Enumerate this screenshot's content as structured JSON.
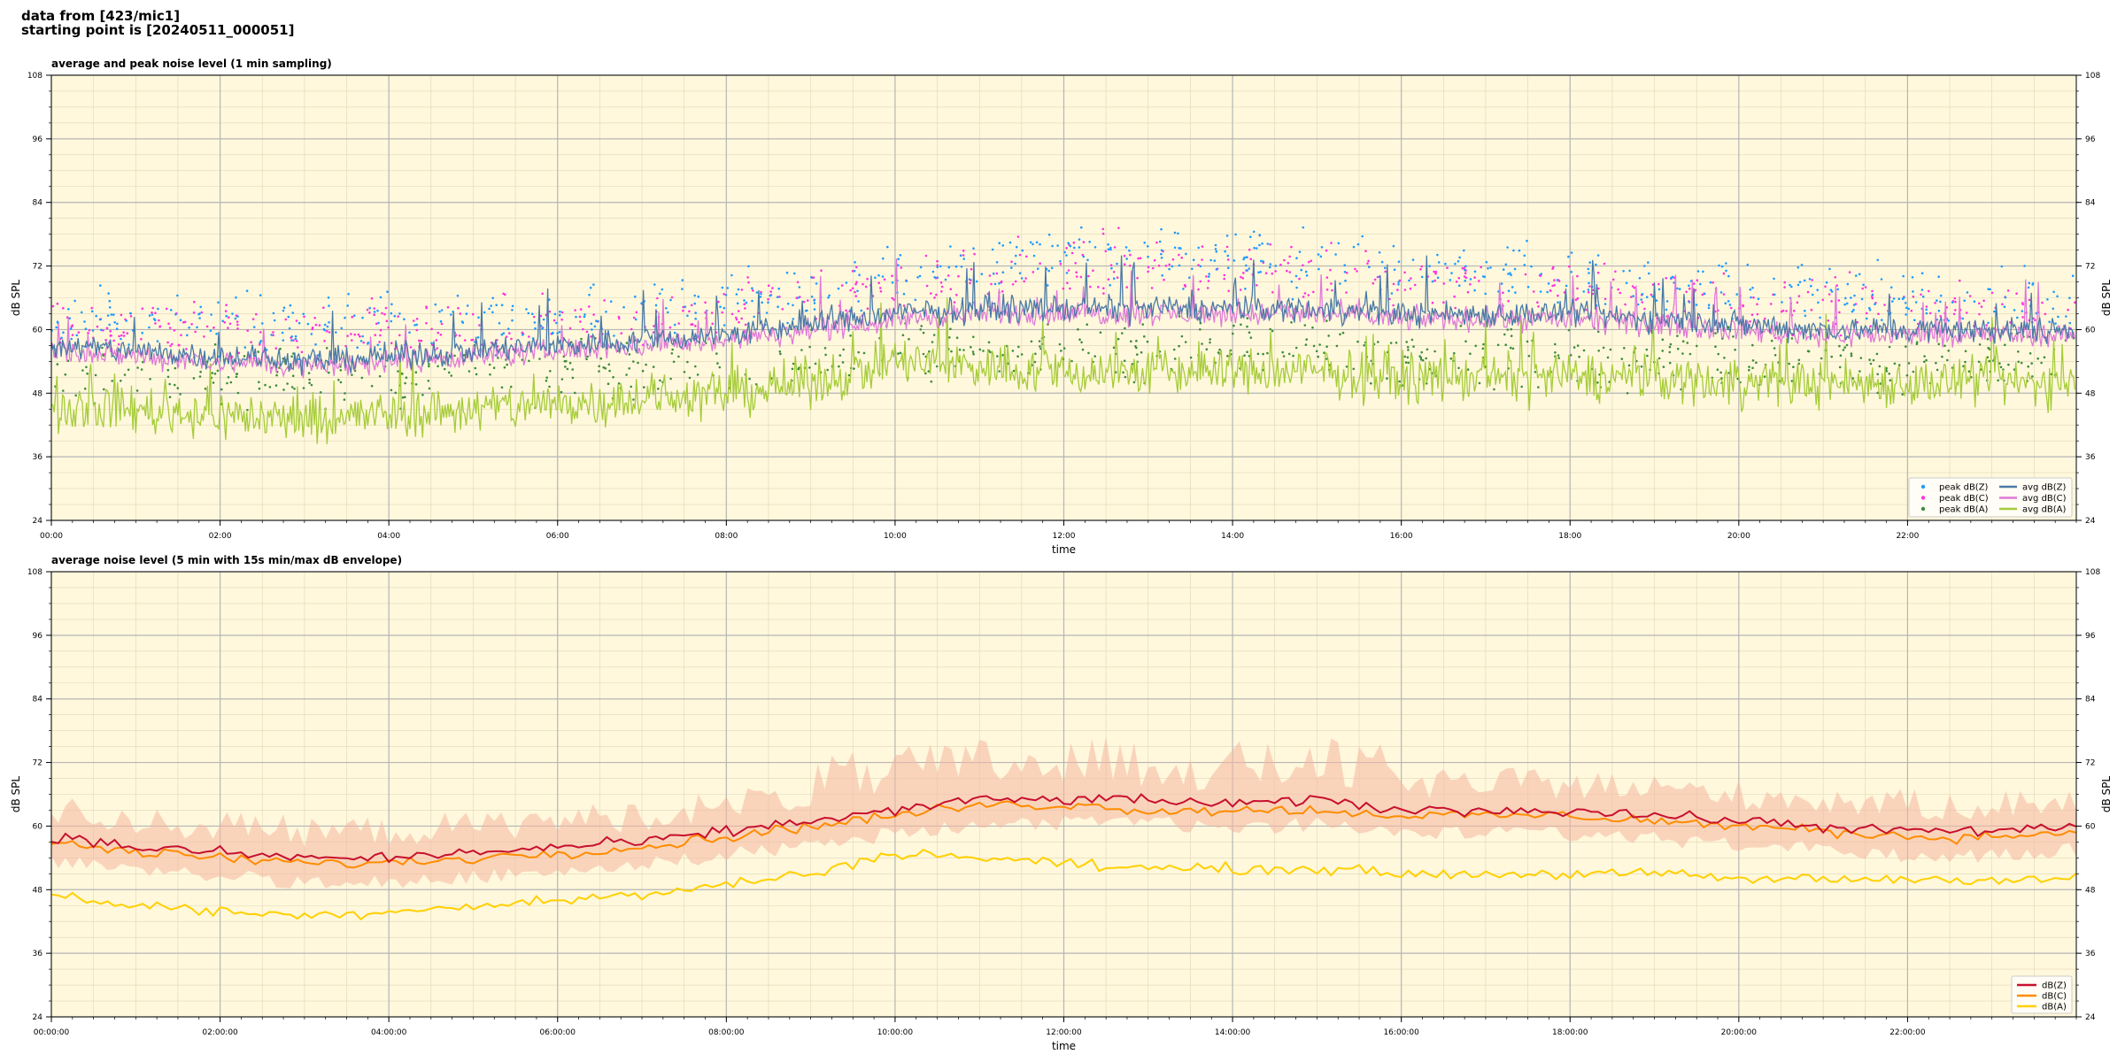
{
  "header": {
    "line1": "data from [423/mic1]",
    "line2": "starting point is [20240511_000051]"
  },
  "colors": {
    "plot_bg": "#fff8dc",
    "peak_z": "#1f9bff",
    "peak_c": "#ff33dd",
    "peak_a": "#3c8c3c",
    "avg_z": "#4a79a6",
    "avg_c": "#e07ad8",
    "avg_a": "#a6cc3a",
    "dbz": "#c8102e",
    "dbc": "#ff8c00",
    "dba": "#ffd000",
    "envelope": "#f4b6a0"
  },
  "chart_data": [
    {
      "type": "line",
      "title": "average and peak noise level (1 min sampling)",
      "xlabel": "time",
      "ylabel": "dB SPL",
      "x_range": [
        "00:00",
        "24:00"
      ],
      "ylim": [
        24,
        108
      ],
      "y_ticks": [
        24,
        36,
        48,
        60,
        72,
        84,
        96,
        108
      ],
      "x_ticks": [
        "00:00",
        "02:00",
        "04:00",
        "06:00",
        "08:00",
        "10:00",
        "12:00",
        "14:00",
        "16:00",
        "18:00",
        "20:00",
        "22:00"
      ],
      "grid": true,
      "legend_position": "bottom-right",
      "legend": [
        "peak dB(Z)",
        "peak dB(C)",
        "peak dB(A)",
        "avg dB(Z)",
        "avg dB(C)",
        "avg dB(A)"
      ],
      "series": [
        {
          "name": "avg dB(Z)",
          "x_hours": [
            0,
            1,
            2,
            3,
            4,
            5,
            6,
            7,
            8,
            9,
            10,
            11,
            12,
            13,
            14,
            15,
            16,
            17,
            18,
            19,
            20,
            21,
            22,
            23,
            24
          ],
          "values": [
            57,
            56,
            55,
            54,
            55,
            56,
            57,
            58,
            59,
            61,
            63,
            64,
            64,
            64,
            64,
            64,
            63,
            63,
            63,
            62,
            61,
            60,
            60,
            60,
            60
          ]
        },
        {
          "name": "avg dB(C)",
          "x_hours": [
            0,
            1,
            2,
            3,
            4,
            5,
            6,
            7,
            8,
            9,
            10,
            11,
            12,
            13,
            14,
            15,
            16,
            17,
            18,
            19,
            20,
            21,
            22,
            23,
            24
          ],
          "values": [
            56,
            55,
            54,
            53,
            54,
            55,
            56,
            57,
            58,
            60,
            62,
            63,
            63,
            63,
            63,
            63,
            62,
            62,
            62,
            61,
            60,
            59,
            59,
            59,
            59
          ]
        },
        {
          "name": "avg dB(A)",
          "x_hours": [
            0,
            1,
            2,
            3,
            4,
            5,
            6,
            7,
            8,
            9,
            10,
            11,
            12,
            13,
            14,
            15,
            16,
            17,
            18,
            19,
            20,
            21,
            22,
            23,
            24
          ],
          "values": [
            46,
            45,
            44,
            43,
            44,
            45,
            46,
            47,
            48,
            50,
            54,
            53,
            52,
            52,
            52,
            52,
            51,
            51,
            51,
            51,
            50,
            50,
            50,
            50,
            50
          ]
        },
        {
          "name": "peak dB(Z)",
          "x_hours": [
            0,
            2,
            4,
            6,
            8,
            10,
            12,
            14,
            16,
            18,
            20,
            22,
            24
          ],
          "values": [
            62,
            61,
            61,
            62,
            64,
            70,
            74,
            74,
            71,
            70,
            68,
            66,
            65
          ]
        },
        {
          "name": "peak dB(C)",
          "x_hours": [
            0,
            2,
            4,
            6,
            8,
            10,
            12,
            14,
            16,
            18,
            20,
            22,
            24
          ],
          "values": [
            61,
            60,
            60,
            61,
            63,
            68,
            72,
            72,
            69,
            68,
            66,
            64,
            63
          ]
        },
        {
          "name": "peak dB(A)",
          "x_hours": [
            0,
            2,
            4,
            6,
            8,
            10,
            12,
            14,
            16,
            18,
            20,
            22,
            24
          ],
          "values": [
            52,
            51,
            51,
            52,
            53,
            56,
            57,
            57,
            55,
            55,
            54,
            54,
            54
          ]
        }
      ]
    },
    {
      "type": "line",
      "title": "average noise level (5 min with 15s min/max dB envelope)",
      "xlabel": "time",
      "ylabel": "dB SPL",
      "x_range": [
        "00:00:00",
        "24:00:00"
      ],
      "ylim": [
        24,
        108
      ],
      "y_ticks": [
        24,
        36,
        48,
        60,
        72,
        84,
        96,
        108
      ],
      "x_ticks": [
        "00:00:00",
        "02:00:00",
        "04:00:00",
        "06:00:00",
        "08:00:00",
        "10:00:00",
        "12:00:00",
        "14:00:00",
        "16:00:00",
        "18:00:00",
        "20:00:00",
        "22:00:00"
      ],
      "grid": true,
      "legend_position": "bottom-right",
      "legend": [
        "dB(Z)",
        "dB(C)",
        "dB(A)"
      ],
      "series": [
        {
          "name": "dB(Z)",
          "x_hours": [
            0,
            1,
            2,
            3,
            4,
            5,
            6,
            7,
            8,
            9,
            10,
            11,
            12,
            13,
            14,
            15,
            16,
            17,
            18,
            19,
            20,
            21,
            22,
            23,
            24
          ],
          "values": [
            58,
            56,
            55,
            54,
            54,
            55,
            56,
            57,
            59,
            61,
            63,
            65,
            65,
            65,
            64,
            65,
            63,
            63,
            63,
            62,
            61,
            60,
            59,
            59,
            60
          ]
        },
        {
          "name": "dB(C)",
          "x_hours": [
            0,
            1,
            2,
            3,
            4,
            5,
            6,
            7,
            8,
            9,
            10,
            11,
            12,
            13,
            14,
            15,
            16,
            17,
            18,
            19,
            20,
            21,
            22,
            23,
            24
          ],
          "values": [
            57,
            55,
            54,
            53,
            53,
            54,
            55,
            56,
            58,
            60,
            62,
            64,
            64,
            63,
            63,
            63,
            62,
            62,
            62,
            61,
            60,
            59,
            58,
            58,
            59
          ]
        },
        {
          "name": "dB(A)",
          "x_hours": [
            0,
            1,
            2,
            3,
            4,
            5,
            6,
            7,
            8,
            9,
            10,
            11,
            12,
            13,
            14,
            15,
            16,
            17,
            18,
            19,
            20,
            21,
            22,
            23,
            24
          ],
          "values": [
            47,
            45,
            44,
            43,
            44,
            45,
            46,
            47,
            49,
            51,
            55,
            54,
            53,
            52,
            52,
            52,
            51,
            51,
            51,
            51,
            50,
            50,
            50,
            50,
            50
          ]
        }
      ]
    }
  ]
}
